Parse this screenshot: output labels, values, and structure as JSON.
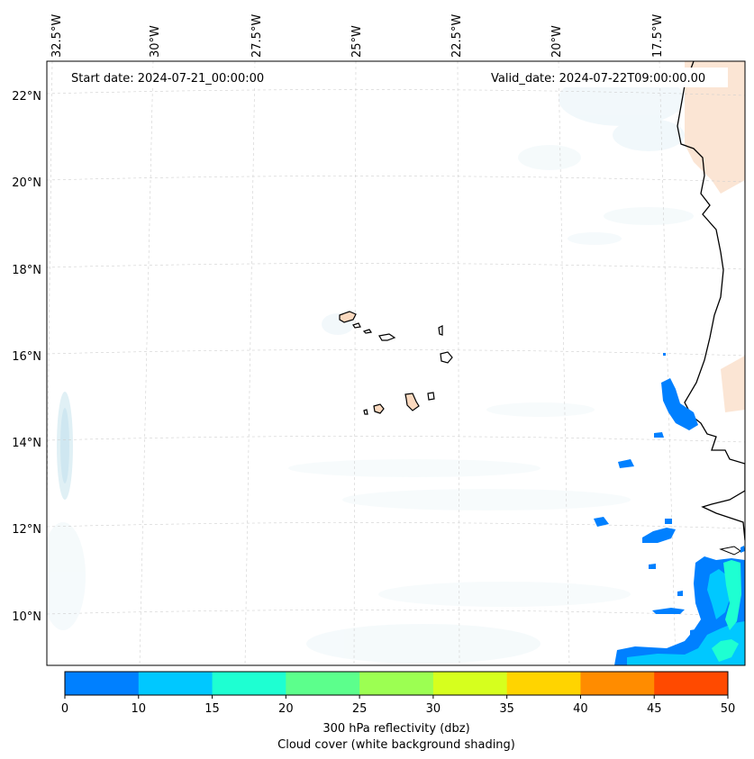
{
  "map": {
    "start_label": "Start date: 2024-07-21_00:00:00",
    "valid_label": "Valid_date: 2024-07-22T09:00:00.00",
    "lon_labels": [
      "32.5°W",
      "30°W",
      "27.5°W",
      "25°W",
      "22.5°W",
      "20°W",
      "17.5°W"
    ],
    "lat_labels": [
      "22°N",
      "20°N",
      "18°N",
      "16°N",
      "14°N",
      "12°N",
      "10°N"
    ],
    "colorbar": {
      "ticks": [
        "0",
        "10",
        "15",
        "20",
        "25",
        "30",
        "35",
        "40",
        "45",
        "50"
      ],
      "colors": [
        "#0080ff",
        "#00c8ff",
        "#1effd2",
        "#5cff8c",
        "#9cff52",
        "#d6ff1e",
        "#ffd400",
        "#ff8c00",
        "#ff4a00"
      ],
      "label_line1": "300 hPa reflectivity (dbz)",
      "label_line2": "Cloud cover (white background shading)"
    }
  }
}
